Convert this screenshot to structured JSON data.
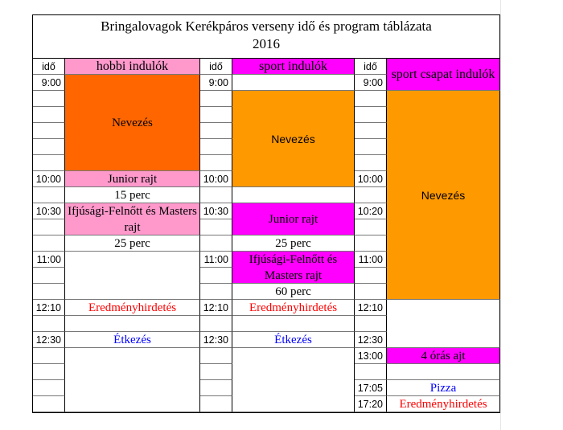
{
  "title": {
    "line1": "Bringalovagok Kerékpáros verseny idő és program táblázata",
    "line2": "2016"
  },
  "colors": {
    "pink": "#ff99cc",
    "magenta": "#ff00ff",
    "dark_orange": "#ff6600",
    "orange": "#ff9900",
    "red": "#ff0000",
    "blue": "#0000ff"
  },
  "columns": [
    {
      "time_header": "idő",
      "header": "hobbi indulók",
      "header_color": "#ff99cc",
      "times": [
        [
          "9:00",
          1
        ],
        [
          "",
          5
        ],
        [
          "10:00",
          1
        ],
        [
          "",
          1
        ],
        [
          "10:30",
          1
        ],
        [
          "",
          2
        ],
        [
          "11:00",
          1
        ],
        [
          "",
          2
        ],
        [
          "12:10",
          1
        ],
        [
          "",
          1
        ],
        [
          "12:30",
          1
        ],
        [
          "",
          4
        ]
      ],
      "cells": [
        {
          "text": "Nevezés",
          "span": 6,
          "bg": "#ff6600"
        },
        {
          "text": "Junior rajt",
          "span": 1,
          "bg": "#ff99cc"
        },
        {
          "text": "15 perc",
          "span": 1
        },
        {
          "text": "Ifjúsági-Felnőtt és Masters rajt",
          "span": 2,
          "bg": "#ff99cc"
        },
        {
          "text": "25 perc",
          "span": 1
        },
        {
          "text": "",
          "span": 3
        },
        {
          "text": "Eredményhirdetés",
          "span": 1,
          "color": "#ff0000"
        },
        {
          "text": "",
          "span": 1
        },
        {
          "text": "Étkezés",
          "span": 1,
          "color": "#0000ff"
        },
        {
          "text": "",
          "span": 4
        }
      ]
    },
    {
      "time_header": "idő",
      "header": "sport indulók",
      "header_color": "#ff00ff",
      "times": [
        [
          "9:00",
          1
        ],
        [
          "",
          5
        ],
        [
          "10:00",
          1
        ],
        [
          "",
          1
        ],
        [
          "10:30",
          1
        ],
        [
          "",
          2
        ],
        [
          "11:00",
          1
        ],
        [
          "",
          2
        ],
        [
          "12:10",
          1
        ],
        [
          "",
          1
        ],
        [
          "12:30",
          1
        ],
        [
          "",
          4
        ]
      ],
      "cells": [
        {
          "text": "",
          "span": 1
        },
        {
          "text": "Nevezés",
          "span": 6,
          "bg": "#ff9900",
          "sans": true
        },
        {
          "text": "",
          "span": 1
        },
        {
          "text": "Junior rajt",
          "span": 2,
          "bg": "#ff00ff"
        },
        {
          "text": "25 perc",
          "span": 1
        },
        {
          "text": "Ifjúsági-Felnőtt és Masters rajt",
          "span": 2,
          "bg": "#ff00ff"
        },
        {
          "text": "60 perc",
          "span": 1
        },
        {
          "text": "Eredményhirdetés",
          "span": 1,
          "color": "#ff0000"
        },
        {
          "text": "",
          "span": 1
        },
        {
          "text": "Étkezés",
          "span": 1,
          "color": "#0000ff"
        },
        {
          "text": "",
          "span": 4
        }
      ]
    },
    {
      "time_header": "idő",
      "header": "sport csapat indulók",
      "header_color": "#ff00ff",
      "header_span_first_row": true,
      "times": [
        [
          "9:00",
          1
        ],
        [
          "",
          5
        ],
        [
          "10:00",
          1
        ],
        [
          "",
          1
        ],
        [
          "10:20",
          1
        ],
        [
          "",
          2
        ],
        [
          "11:00",
          1
        ],
        [
          "",
          2
        ],
        [
          "12:10",
          1
        ],
        [
          "",
          1
        ],
        [
          "12:30",
          1
        ],
        [
          "13:00",
          1
        ],
        [
          "",
          1
        ],
        [
          "17:05",
          1
        ],
        [
          "17:20",
          1
        ]
      ],
      "cells": [
        {
          "text": "Nevezés",
          "span": 13,
          "bg": "#ff9900",
          "sans": true
        },
        {
          "text": "",
          "span": 3
        },
        {
          "text": "4 órás ajt",
          "span": 1,
          "bg": "#ff00ff"
        },
        {
          "text": "",
          "span": 1
        },
        {
          "text": "Pizza",
          "span": 1,
          "color": "#0000ff"
        },
        {
          "text": "Eredményhirdetés",
          "span": 1,
          "color": "#ff0000"
        }
      ]
    }
  ]
}
